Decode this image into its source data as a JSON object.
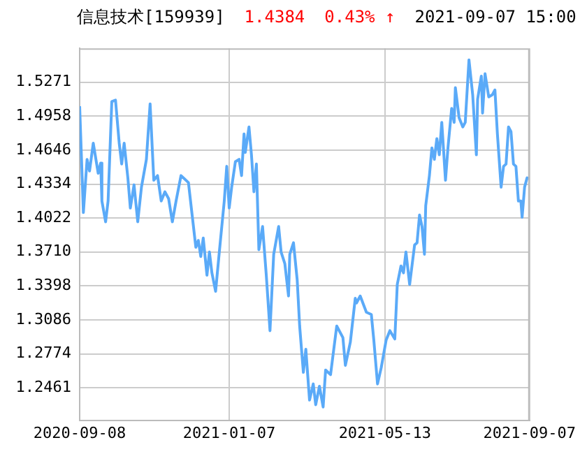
{
  "chart_data": {
    "type": "line",
    "title": "信息技术[159939]",
    "annotations": [
      "1.4384",
      "0.43% ↑",
      "2021-09-07 15:00"
    ],
    "x": [
      "2020-09-08",
      "2020-09-11",
      "2020-09-14",
      "2020-09-16",
      "2020-09-19",
      "2020-09-23",
      "2020-09-25",
      "2020-09-26",
      "2020-09-29",
      "2020-10-01",
      "2020-10-04",
      "2020-10-07",
      "2020-10-10",
      "2020-10-12",
      "2020-10-14",
      "2020-10-17",
      "2020-10-19",
      "2020-10-22",
      "2020-10-25",
      "2020-10-28",
      "2020-11-01",
      "2020-11-04",
      "2020-11-07",
      "2020-11-10",
      "2020-11-13",
      "2020-11-16",
      "2020-11-19",
      "2020-11-22",
      "2020-11-25",
      "2020-11-29",
      "2020-12-05",
      "2020-12-08",
      "2020-12-11",
      "2020-12-13",
      "2020-12-15",
      "2020-12-17",
      "2020-12-20",
      "2020-12-22",
      "2020-12-24",
      "2020-12-27",
      "2020-12-30",
      "2021-01-03",
      "2021-01-05",
      "2021-01-07",
      "2021-01-09",
      "2021-01-12",
      "2021-01-15",
      "2021-01-17",
      "2021-01-19",
      "2021-01-20",
      "2021-01-23",
      "2021-01-25",
      "2021-01-27",
      "2021-01-29",
      "2021-01-31",
      "2021-02-03",
      "2021-02-06",
      "2021-02-09",
      "2021-02-12",
      "2021-02-16",
      "2021-02-18",
      "2021-02-21",
      "2021-02-24",
      "2021-02-25",
      "2021-02-28",
      "2021-03-03",
      "2021-03-05",
      "2021-03-08",
      "2021-03-10",
      "2021-03-13",
      "2021-03-16",
      "2021-03-18",
      "2021-03-21",
      "2021-03-24",
      "2021-03-26",
      "2021-03-30",
      "2021-04-04",
      "2021-04-09",
      "2021-04-11",
      "2021-04-15",
      "2021-04-19",
      "2021-04-20",
      "2021-04-23",
      "2021-04-28",
      "2021-05-02",
      "2021-05-04",
      "2021-05-07",
      "2021-05-10",
      "2021-05-14",
      "2021-05-17",
      "2021-05-21",
      "2021-05-23",
      "2021-05-26",
      "2021-05-28",
      "2021-05-30",
      "2021-06-02",
      "2021-06-06",
      "2021-06-08",
      "2021-06-10",
      "2021-06-12",
      "2021-06-14",
      "2021-06-15",
      "2021-06-18",
      "2021-06-20",
      "2021-06-22",
      "2021-06-24",
      "2021-06-26",
      "2021-06-28",
      "2021-07-01",
      "2021-07-03",
      "2021-07-06",
      "2021-07-08",
      "2021-07-09",
      "2021-07-12",
      "2021-07-15",
      "2021-07-17",
      "2021-07-20",
      "2021-07-23",
      "2021-07-26",
      "2021-07-27",
      "2021-07-30",
      "2021-07-31",
      "2021-08-02",
      "2021-08-05",
      "2021-08-08",
      "2021-08-10",
      "2021-08-12",
      "2021-08-15",
      "2021-08-17",
      "2021-08-19",
      "2021-08-21",
      "2021-08-23",
      "2021-08-25",
      "2021-08-27",
      "2021-08-29",
      "2021-08-31",
      "2021-09-01",
      "2021-09-03",
      "2021-09-05",
      "2021-09-07"
    ],
    "series": [
      {
        "color": "#5aaaf8",
        "values": [
          1.505,
          1.4072,
          1.4561,
          1.4454,
          1.471,
          1.4433,
          1.4527,
          1.4178,
          1.3987,
          1.4178,
          1.5092,
          1.5105,
          1.471,
          1.4518,
          1.471,
          1.4391,
          1.4114,
          1.4327,
          1.3987,
          1.4306,
          1.4561,
          1.5071,
          1.4369,
          1.4412,
          1.4178,
          1.4263,
          1.4199,
          1.3987,
          1.4178,
          1.4412,
          1.4348,
          1.405,
          1.3753,
          1.3816,
          1.3668,
          1.3838,
          1.3497,
          1.371,
          1.3518,
          1.3349,
          1.371,
          1.4178,
          1.4497,
          1.4114,
          1.4306,
          1.454,
          1.4561,
          1.4412,
          1.4795,
          1.4625,
          1.4859,
          1.4603,
          1.4263,
          1.4518,
          1.3731,
          1.3944,
          1.3497,
          1.2987,
          1.3689,
          1.3944,
          1.371,
          1.3604,
          1.3306,
          1.3689,
          1.3795,
          1.3455,
          1.303,
          1.2604,
          1.2817,
          1.2349,
          1.2498,
          1.2307,
          1.2477,
          1.2286,
          1.2626,
          1.2583,
          1.303,
          1.2923,
          1.2668,
          1.2881,
          1.3285,
          1.3242,
          1.3306,
          1.3157,
          1.3136,
          1.2902,
          1.2498,
          1.2647,
          1.2902,
          1.2987,
          1.2911,
          1.3412,
          1.3582,
          1.3518,
          1.371,
          1.3412,
          1.3774,
          1.3795,
          1.405,
          1.3944,
          1.3689,
          1.4135,
          1.4412,
          1.4667,
          1.4561,
          1.4752,
          1.4603,
          1.4901,
          1.4369,
          1.4667,
          1.5029,
          1.4901,
          1.522,
          1.4944,
          1.4859,
          1.4901,
          1.5475,
          1.5156,
          1.4603,
          1.5114,
          1.5326,
          1.4986,
          1.5348,
          1.5135,
          1.5156,
          1.5199,
          1.4795,
          1.4306,
          1.4497,
          1.4518,
          1.4859,
          1.4816,
          1.4518,
          1.4497,
          1.4178,
          1.4178,
          1.4029,
          1.4306,
          1.4391,
          1.4384
        ]
      }
    ],
    "xlim": [
      "2020-09-08",
      "2021-09-07"
    ],
    "xticks": [
      "2020-09-08",
      "2021-01-07",
      "2021-05-13",
      "2021-09-07"
    ],
    "ylim": [
      1.2162,
      1.5581
    ],
    "yticks": [
      {
        "value": 1.2461,
        "label": "1.2461"
      },
      {
        "value": 1.2774,
        "label": "1.2774"
      },
      {
        "value": 1.3086,
        "label": "1.3086"
      },
      {
        "value": 1.3398,
        "label": "1.3398"
      },
      {
        "value": 1.371,
        "label": "1.3710"
      },
      {
        "value": 1.4022,
        "label": "1.4022"
      },
      {
        "value": 1.4334,
        "label": "1.4334"
      },
      {
        "value": 1.4646,
        "label": "1.4646"
      },
      {
        "value": 1.4958,
        "label": "1.4958"
      },
      {
        "value": 1.5271,
        "label": "1.5271"
      }
    ],
    "grid": true,
    "line_style": "solid",
    "marker": "none",
    "legend": false
  }
}
